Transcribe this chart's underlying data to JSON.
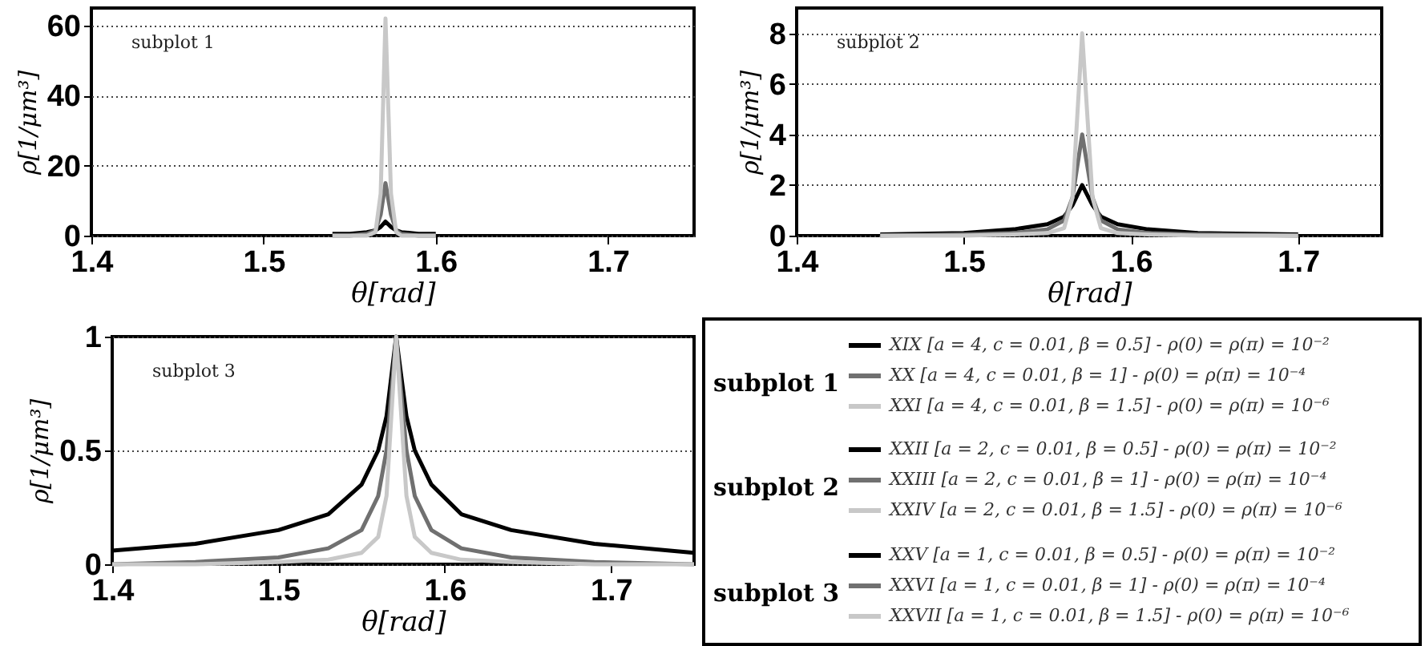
{
  "chart_data": [
    {
      "type": "line",
      "xlabel": "θ[rad]",
      "ylabel": "ρ[1/μm³]",
      "annotations": [
        "subplot 1"
      ],
      "legend_title": "subplot 1",
      "legend": "bottom right",
      "grid": "y",
      "line_style": "solid",
      "xlim": [
        1.4,
        1.75
      ],
      "xticks": [
        1.4,
        1.5,
        1.6,
        1.7
      ],
      "ylim": [
        0,
        65
      ],
      "yticks": [
        0,
        20,
        40,
        60
      ],
      "x": [
        1.54,
        1.55,
        1.56,
        1.565,
        1.568,
        1.5708,
        1.574,
        1.577,
        1.58,
        1.59,
        1.6
      ],
      "series": [
        {
          "name": "XIX [a = 4, c = 0.01, β = 0.5] - ρ(0) = ρ(π) = 10⁻²",
          "color": "#000000",
          "values": [
            0.5,
            0.5,
            1,
            1.5,
            2.5,
            4,
            2.5,
            1.5,
            1,
            0.5,
            0.5
          ]
        },
        {
          "name": "XX [a = 4, c = 0.01, β = 1] - ρ(0) = ρ(π) = 10⁻⁴",
          "color": "#707070",
          "values": [
            0,
            0,
            0.5,
            1.5,
            6,
            15,
            6,
            1.5,
            0.5,
            0,
            0
          ]
        },
        {
          "name": "XXI [a = 4, c = 0.01, β = 1.5] - ρ(0) = ρ(π) = 10⁻⁶",
          "color": "#c8c8c8",
          "values": [
            0,
            0,
            0,
            1,
            12,
            62,
            12,
            1,
            0,
            0,
            0
          ]
        }
      ]
    },
    {
      "type": "line",
      "xlabel": "θ[rad]",
      "ylabel": "ρ[1/μm³]",
      "annotations": [
        "subplot 2"
      ],
      "legend_title": "subplot 2",
      "legend": "bottom",
      "grid": "y",
      "line_style": "solid",
      "xlim": [
        1.4,
        1.75
      ],
      "xticks": [
        1.4,
        1.5,
        1.6,
        1.7
      ],
      "ylim": [
        0,
        9
      ],
      "yticks": [
        0,
        2,
        4,
        6,
        8
      ],
      "x": [
        1.45,
        1.5,
        1.53,
        1.55,
        1.56,
        1.565,
        1.5708,
        1.577,
        1.582,
        1.592,
        1.61,
        1.64,
        1.7
      ],
      "series": [
        {
          "name": "XXII [a = 2, c = 0.01, β = 0.5] - ρ(0) = ρ(π) = 10⁻²",
          "color": "#000000",
          "values": [
            0.05,
            0.1,
            0.25,
            0.45,
            0.75,
            1.2,
            2,
            1.2,
            0.75,
            0.45,
            0.25,
            0.1,
            0.05
          ]
        },
        {
          "name": "XXIII [a = 2, c = 0.01, β = 1] - ρ(0) = ρ(π) = 10⁻⁴",
          "color": "#707070",
          "values": [
            0,
            0.05,
            0.1,
            0.25,
            0.6,
            1.5,
            4,
            1.5,
            0.6,
            0.25,
            0.1,
            0.05,
            0
          ]
        },
        {
          "name": "XXIV [a = 2, c = 0.01, β = 1.5] - ρ(0) = ρ(π) = 10⁻⁶",
          "color": "#c8c8c8",
          "values": [
            0,
            0,
            0.05,
            0.1,
            0.3,
            1.5,
            8,
            1.5,
            0.3,
            0.1,
            0.05,
            0,
            0
          ]
        }
      ]
    },
    {
      "type": "line",
      "xlabel": "θ[rad]",
      "ylabel": "ρ[1/μm³]",
      "annotations": [
        "subplot 3"
      ],
      "legend_title": "subplot 3",
      "legend": "right",
      "grid": "y",
      "line_style": "solid",
      "xlim": [
        1.4,
        1.75
      ],
      "xticks": [
        1.4,
        1.5,
        1.6,
        1.7
      ],
      "ylim": [
        0,
        1
      ],
      "yticks": [
        0,
        0.5,
        1
      ],
      "x": [
        1.4,
        1.45,
        1.5,
        1.53,
        1.55,
        1.56,
        1.565,
        1.5708,
        1.577,
        1.582,
        1.592,
        1.61,
        1.64,
        1.69,
        1.75
      ],
      "series": [
        {
          "name": "XXV [a = 1, c = 0.01, β = 0.5] - ρ(0) = ρ(π) = 10⁻²",
          "color": "#000000",
          "values": [
            0.06,
            0.09,
            0.15,
            0.22,
            0.35,
            0.5,
            0.65,
            1,
            0.65,
            0.5,
            0.35,
            0.22,
            0.15,
            0.09,
            0.05
          ]
        },
        {
          "name": "XXVI [a = 1, c = 0.01, β = 1] - ρ(0) = ρ(π) = 10⁻⁴",
          "color": "#707070",
          "values": [
            0,
            0.01,
            0.03,
            0.07,
            0.15,
            0.3,
            0.5,
            1,
            0.5,
            0.3,
            0.15,
            0.07,
            0.03,
            0.01,
            0
          ]
        },
        {
          "name": "XXVII [a = 1, c = 0.01, β = 1.5] - ρ(0) = ρ(π) = 10⁻⁶",
          "color": "#c8c8c8",
          "values": [
            0,
            0,
            0.01,
            0.02,
            0.05,
            0.12,
            0.3,
            1,
            0.3,
            0.12,
            0.05,
            0.02,
            0.01,
            0,
            0
          ]
        }
      ]
    }
  ]
}
